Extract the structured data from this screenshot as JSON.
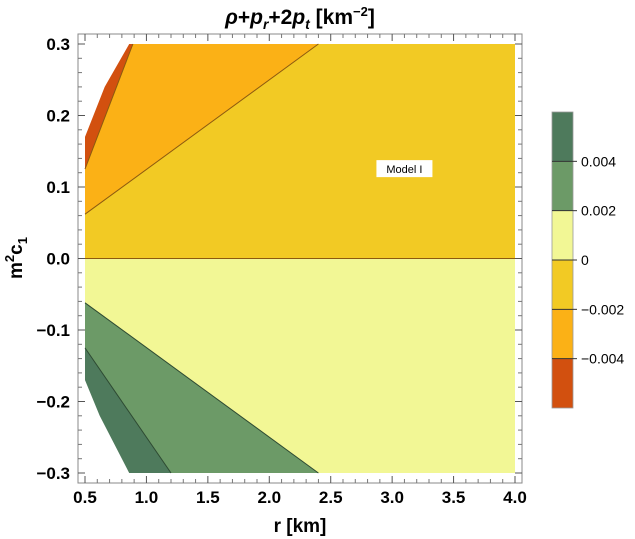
{
  "chart_data": {
    "type": "contour",
    "title_parts": {
      "rho": "ρ",
      "plus1": "+",
      "p": "p",
      "r_sub": "r",
      "plus2": "+2",
      "p2": "p",
      "t_sub": "t",
      "unit_open": " [km",
      "unit_exp": "−2",
      "unit_close": "]"
    },
    "xlabel": "r [km]",
    "ylabel_parts": {
      "m": "m",
      "exp": "2",
      "c": "c",
      "sub": "1"
    },
    "xlim": [
      0.5,
      4.0
    ],
    "ylim": [
      -0.3,
      0.3
    ],
    "x_ticks": [
      "0.5",
      "1.0",
      "1.5",
      "2.0",
      "2.5",
      "3.0",
      "3.5",
      "4.0"
    ],
    "y_ticks": [
      "0.3",
      "0.2",
      "0.1",
      "0.0",
      "−0.1",
      "−0.2",
      "−0.3"
    ],
    "y_tick_values": [
      0.3,
      0.2,
      0.1,
      0.0,
      -0.1,
      -0.2,
      -0.3
    ],
    "x_tick_values": [
      0.5,
      1.0,
      1.5,
      2.0,
      2.5,
      3.0,
      3.5,
      4.0
    ],
    "annotation": "Model I",
    "annotation_pos": {
      "x": 3.1,
      "y": 0.125
    },
    "contour_levels": [
      -0.004,
      -0.002,
      0,
      0.002,
      0.004
    ],
    "legend_labels": [
      "0.004",
      "0.002",
      "0",
      "−0.002",
      "−0.004"
    ],
    "legend_position": "right",
    "colors": {
      "band_lt_m004": "#d2500f",
      "band_m004_m002": "#fbb116",
      "band_m002_0": "#f2ca24",
      "band_0_002": "#f2f795",
      "band_002_004": "#6c9a67",
      "band_gt_004": "#4e7a5c",
      "contour_line_orange": "#8c5a10",
      "contour_line_green": "#2e4a32"
    },
    "contours": {
      "upper_outer_line": [
        [
          0.5,
          0.125
        ],
        [
          0.89,
          0.3
        ]
      ],
      "upper_inner_line": [
        [
          0.5,
          0.062
        ],
        [
          2.4,
          0.3
        ]
      ],
      "zero_line": [
        [
          0.5,
          0.0
        ],
        [
          4.0,
          0.0
        ]
      ],
      "lower_inner_line": [
        [
          0.5,
          -0.062
        ],
        [
          2.4,
          -0.3
        ]
      ],
      "lower_outer_line": [
        [
          0.5,
          -0.125
        ],
        [
          1.2,
          -0.3
        ]
      ]
    },
    "left_edge": [
      [
        0.86,
        0.3
      ],
      [
        0.66,
        0.24
      ],
      [
        0.5,
        0.17
      ],
      [
        0.5,
        -0.17
      ],
      [
        0.62,
        -0.22
      ],
      [
        0.86,
        -0.3
      ]
    ]
  }
}
